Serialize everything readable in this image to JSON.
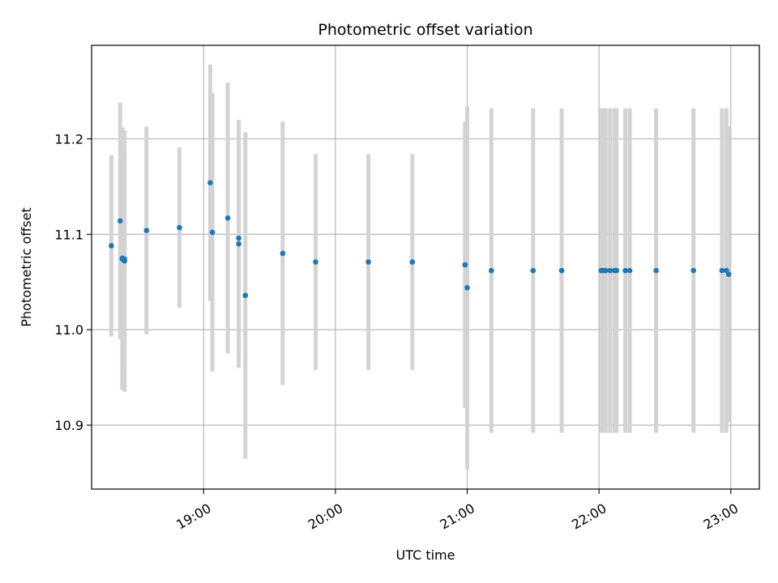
{
  "chart_data": {
    "type": "scatter",
    "title": "Photometric offset variation",
    "xlabel": "UTC time",
    "ylabel": "Photometric offset",
    "x_is_time": true,
    "xlim": [
      "18:09",
      "23:13"
    ],
    "ylim": [
      10.833,
      11.298
    ],
    "xticks": [
      "19:00",
      "20:00",
      "21:00",
      "22:00",
      "23:00"
    ],
    "yticks": [
      10.9,
      11.0,
      11.1,
      11.2
    ],
    "grid": true,
    "colors": {
      "point": "#1f77b4",
      "errorbar": "#d3d3d3",
      "grid": "#b0b0b0"
    },
    "points": [
      {
        "x": "18:18",
        "y": 11.088,
        "err": 0.095
      },
      {
        "x": "18:22",
        "y": 11.114,
        "err": 0.124
      },
      {
        "x": "18:23",
        "y": 11.075,
        "err": 0.137
      },
      {
        "x": "18:23",
        "y": 11.074,
        "err": 0.137
      },
      {
        "x": "18:24",
        "y": 11.072,
        "err": 0.137
      },
      {
        "x": "18:24",
        "y": 11.074,
        "err": 0.106
      },
      {
        "x": "18:34",
        "y": 11.104,
        "err": 0.109
      },
      {
        "x": "18:49",
        "y": 11.107,
        "err": 0.084
      },
      {
        "x": "19:03",
        "y": 11.154,
        "err": 0.124
      },
      {
        "x": "19:04",
        "y": 11.102,
        "err": 0.146
      },
      {
        "x": "19:11",
        "y": 11.117,
        "err": 0.142
      },
      {
        "x": "19:16",
        "y": 11.096,
        "err": 0.124
      },
      {
        "x": "19:16",
        "y": 11.09,
        "err": 0.13
      },
      {
        "x": "19:19",
        "y": 11.036,
        "err": 0.171
      },
      {
        "x": "19:36",
        "y": 11.08,
        "err": 0.138
      },
      {
        "x": "19:51",
        "y": 11.071,
        "err": 0.113
      },
      {
        "x": "20:15",
        "y": 11.071,
        "err": 0.113
      },
      {
        "x": "20:35",
        "y": 11.071,
        "err": 0.113
      },
      {
        "x": "20:59",
        "y": 11.068,
        "err": 0.15
      },
      {
        "x": "21:00",
        "y": 11.044,
        "err": 0.19
      },
      {
        "x": "21:11",
        "y": 11.062,
        "err": 0.17
      },
      {
        "x": "21:30",
        "y": 11.062,
        "err": 0.17
      },
      {
        "x": "21:43",
        "y": 11.062,
        "err": 0.17
      },
      {
        "x": "22:01",
        "y": 11.062,
        "err": 0.17
      },
      {
        "x": "22:02",
        "y": 11.062,
        "err": 0.17
      },
      {
        "x": "22:03",
        "y": 11.062,
        "err": 0.17
      },
      {
        "x": "22:05",
        "y": 11.062,
        "err": 0.17
      },
      {
        "x": "22:07",
        "y": 11.062,
        "err": 0.17
      },
      {
        "x": "22:08",
        "y": 11.062,
        "err": 0.17
      },
      {
        "x": "22:12",
        "y": 11.062,
        "err": 0.17
      },
      {
        "x": "22:14",
        "y": 11.062,
        "err": 0.17
      },
      {
        "x": "22:26",
        "y": 11.062,
        "err": 0.17
      },
      {
        "x": "22:43",
        "y": 11.062,
        "err": 0.17
      },
      {
        "x": "22:56",
        "y": 11.062,
        "err": 0.17
      },
      {
        "x": "22:58",
        "y": 11.062,
        "err": 0.17
      },
      {
        "x": "22:59",
        "y": 11.058,
        "err": 0.155
      }
    ]
  }
}
